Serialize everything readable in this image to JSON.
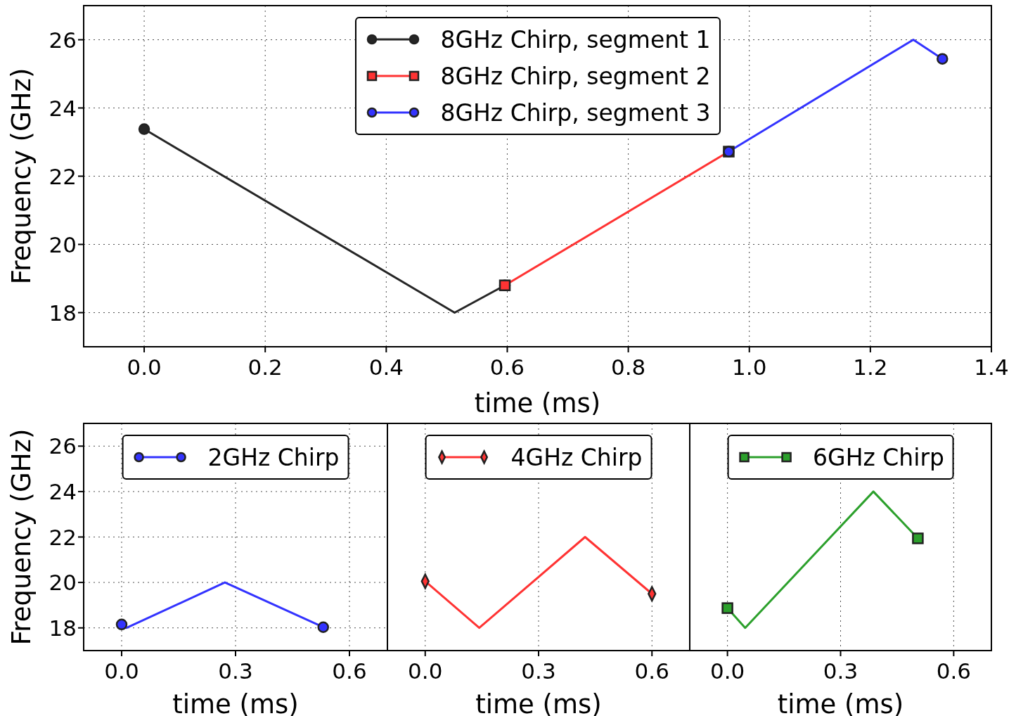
{
  "chart_data": [
    {
      "type": "line",
      "xlabel": "time (ms)",
      "ylabel": "Frequency (GHz)",
      "xlim": [
        -0.1,
        1.4
      ],
      "xticks": [
        {
          "value": 0,
          "label": "0.0"
        },
        {
          "value": 0.2,
          "label": "0.2"
        },
        {
          "value": 0.4,
          "label": "0.4"
        },
        {
          "value": 0.6,
          "label": "0.6"
        },
        {
          "value": 0.8,
          "label": "0.8"
        },
        {
          "value": 1.0,
          "label": "1.0"
        },
        {
          "value": 1.2,
          "label": "1.2"
        },
        {
          "value": 1.4,
          "label": "1.4"
        }
      ],
      "ylim": [
        17,
        27
      ],
      "yticks": [
        18,
        20,
        22,
        24,
        26
      ],
      "grid": true,
      "legend": "top",
      "series": [
        {
          "name": "8GHz Chirp, segment 1",
          "color": "#262626",
          "marker": "circle",
          "x": [
            0,
            0.513,
            0.596
          ],
          "values": [
            23.38,
            18,
            18.8
          ]
        },
        {
          "name": "8GHz Chirp, segment 2",
          "color": "#ff3333",
          "marker": "square",
          "x": [
            0.596,
            0.966
          ],
          "values": [
            18.8,
            22.72
          ]
        },
        {
          "name": "8GHz Chirp, segment 3",
          "color": "#3333ff",
          "marker": "circle",
          "x": [
            0.966,
            1.271,
            1.319
          ],
          "values": [
            22.72,
            26,
            25.44
          ]
        }
      ]
    },
    {
      "type": "line",
      "xlabel": "time (ms)",
      "ylabel": "Frequency (GHz)",
      "xlim": [
        -0.1,
        0.7
      ],
      "xticks": [
        {
          "value": 0,
          "label": "0.0"
        },
        {
          "value": 0.3,
          "label": "0.3"
        },
        {
          "value": 0.6,
          "label": "0.6"
        }
      ],
      "ylim": [
        17,
        27
      ],
      "yticks": [
        18,
        20,
        22,
        24,
        26
      ],
      "grid": true,
      "legend": "top",
      "series": [
        {
          "name": "2GHz Chirp",
          "color": "#3333ff",
          "marker": "circle",
          "x": [
            0,
            0.013,
            0.272,
            0.531
          ],
          "values": [
            18.15,
            18,
            20,
            18.03
          ]
        }
      ]
    },
    {
      "type": "line",
      "xlabel": "time (ms)",
      "xlim": [
        -0.1,
        0.7
      ],
      "xticks": [
        {
          "value": 0,
          "label": "0.0"
        },
        {
          "value": 0.3,
          "label": "0.3"
        },
        {
          "value": 0.6,
          "label": "0.6"
        }
      ],
      "ylim": [
        17,
        27
      ],
      "yticks": [
        18,
        20,
        22,
        24,
        26
      ],
      "tick_labels": "x",
      "grid": true,
      "legend": "top",
      "series": [
        {
          "name": "4GHz Chirp",
          "color": "#ff3333",
          "marker": "diamond",
          "x": [
            0,
            0.143,
            0.423,
            0.6
          ],
          "values": [
            20.05,
            18,
            22,
            19.5
          ]
        }
      ]
    },
    {
      "type": "line",
      "xlabel": "time (ms)",
      "xlim": [
        -0.1,
        0.7
      ],
      "xticks": [
        {
          "value": 0,
          "label": "0.0"
        },
        {
          "value": 0.3,
          "label": "0.3"
        },
        {
          "value": 0.6,
          "label": "0.6"
        }
      ],
      "ylim": [
        17,
        27
      ],
      "yticks": [
        18,
        20,
        22,
        24,
        26
      ],
      "tick_labels": "x",
      "grid": true,
      "legend": "top",
      "series": [
        {
          "name": "6GHz Chirp",
          "color": "#2ca02c",
          "marker": "square",
          "x": [
            0,
            0.047,
            0.387,
            0.505
          ],
          "values": [
            18.87,
            18,
            24,
            21.94
          ]
        }
      ]
    }
  ]
}
